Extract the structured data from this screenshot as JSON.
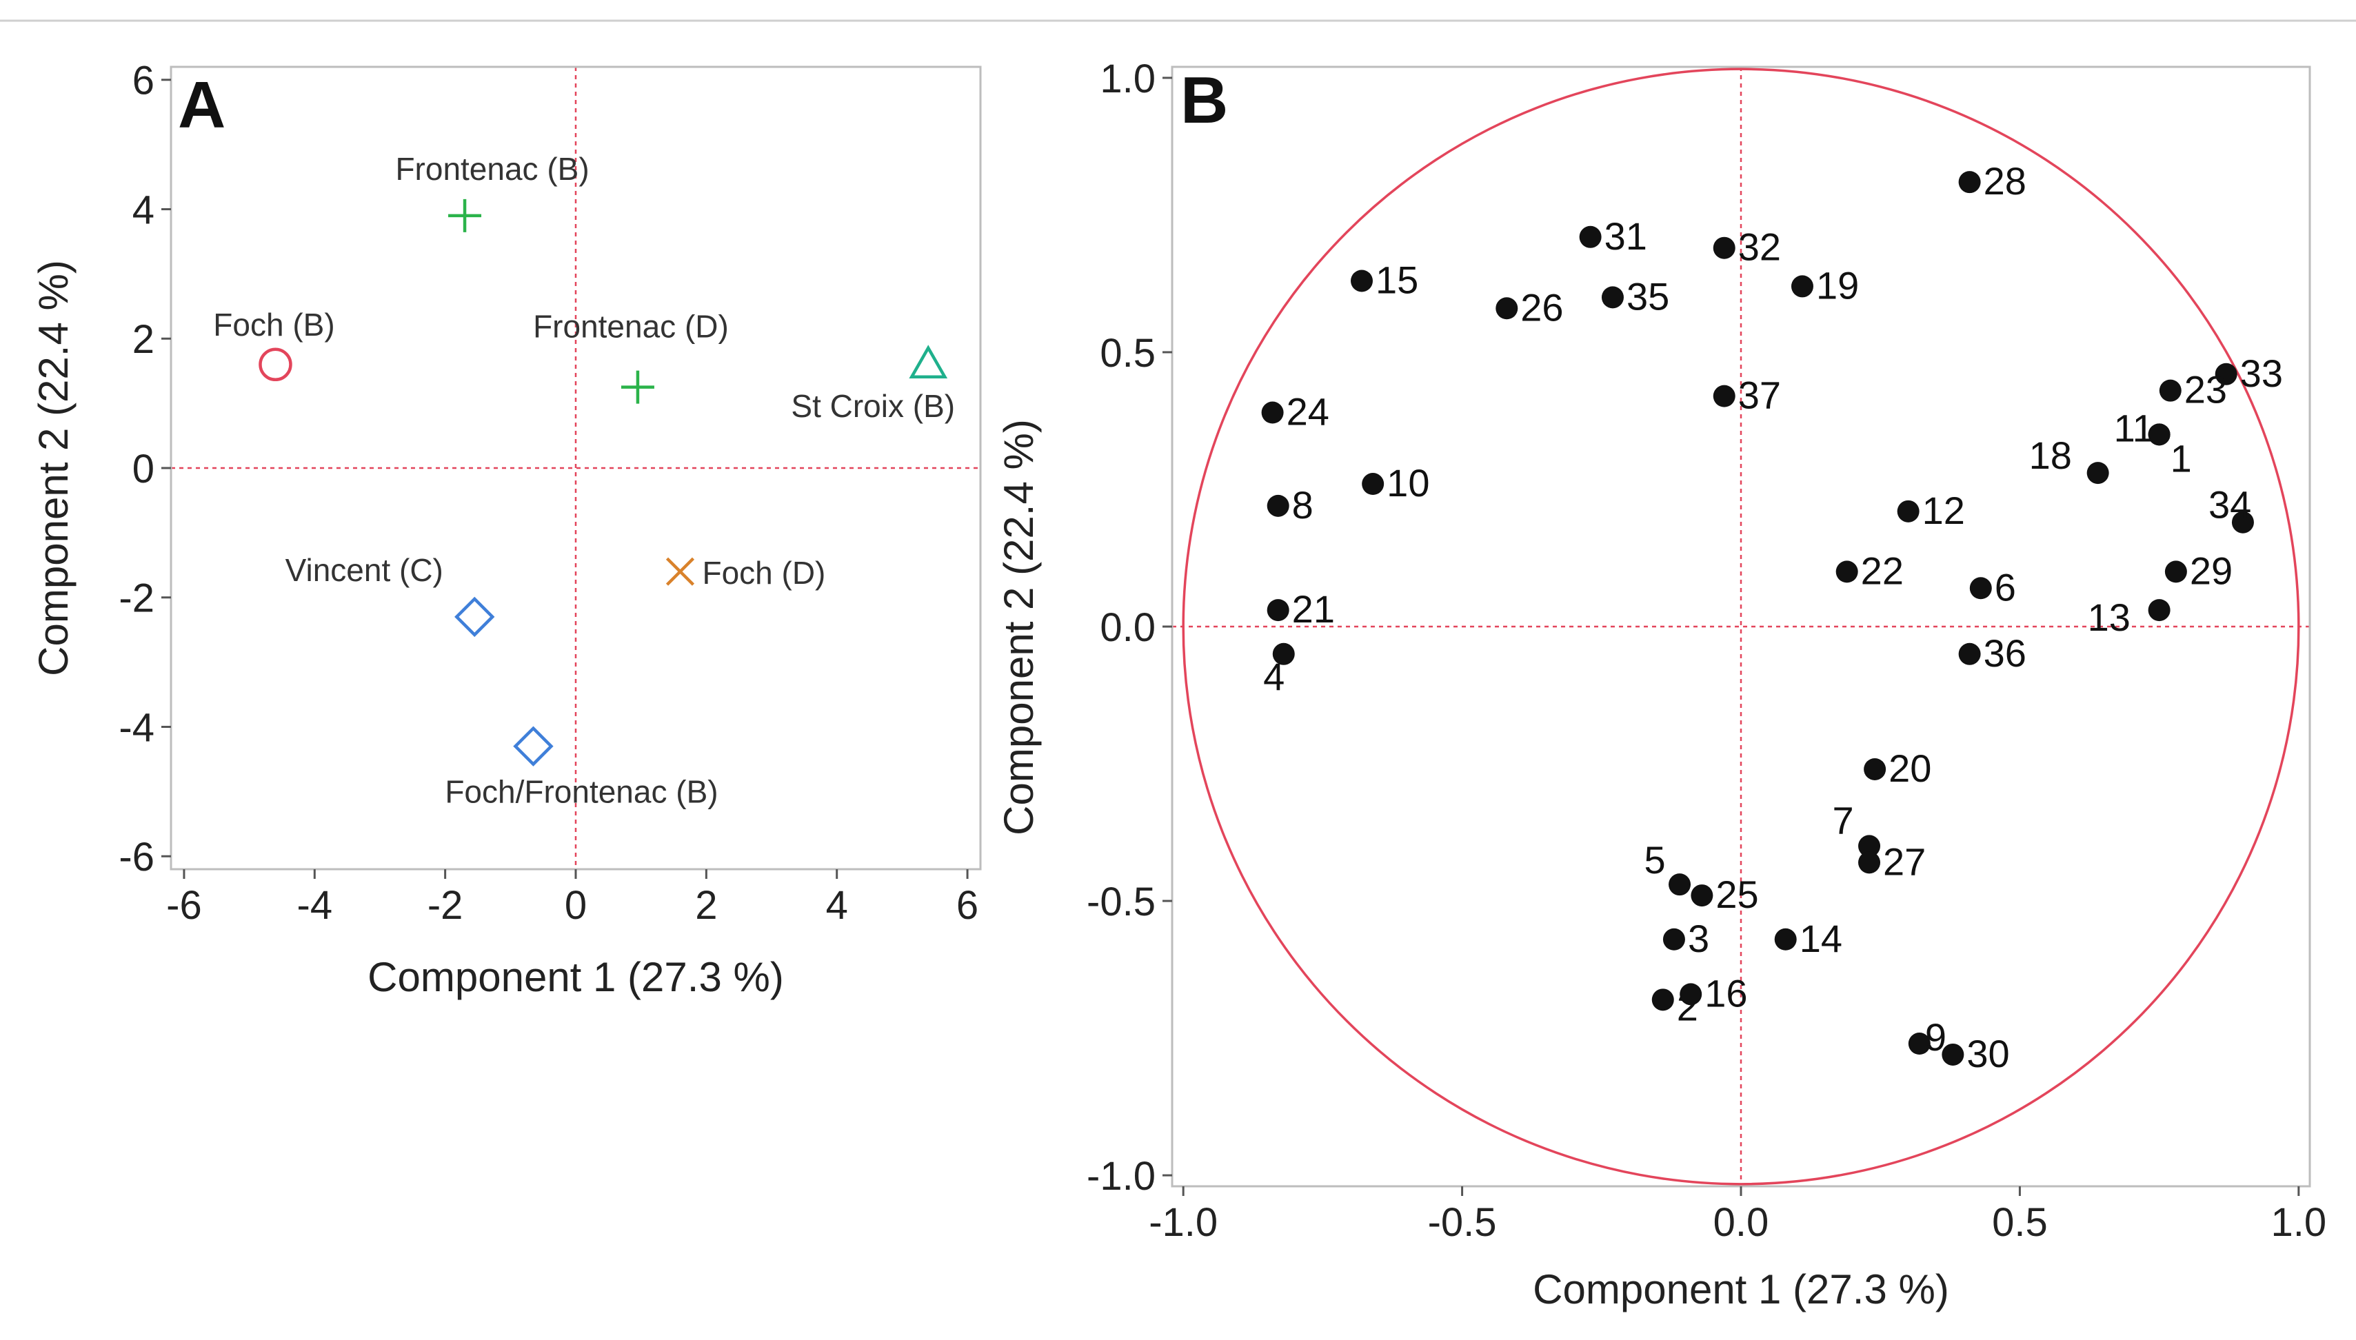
{
  "chart_data": [
    {
      "panel": "A",
      "type": "scatter",
      "xlabel": "Component 1  (27.3 %)",
      "ylabel": "Component 2  (22.4 %)",
      "xlim": [
        -6.2,
        6.2
      ],
      "ylim": [
        -6.2,
        6.2
      ],
      "x_ticks": [
        "-6",
        "-4",
        "-2",
        "0",
        "2",
        "4",
        "6"
      ],
      "y_ticks": [
        "6",
        "4",
        "2",
        "0",
        "-2",
        "-4",
        "-6"
      ],
      "reference_lines": {
        "x": 0,
        "y": 0
      },
      "points": [
        {
          "label": "Frontenac (B)",
          "x": -1.7,
          "y": 3.9,
          "marker": "plus",
          "color": "#2bb34a"
        },
        {
          "label": "Frontenac (D)",
          "x": 0.95,
          "y": 1.25,
          "marker": "plus",
          "color": "#2bb34a"
        },
        {
          "label": "Foch (B)",
          "x": -4.6,
          "y": 1.6,
          "marker": "circle",
          "color": "#e3455b"
        },
        {
          "label": "St Croix (B)",
          "x": 5.4,
          "y": 1.6,
          "marker": "triangle",
          "color": "#1fb08c"
        },
        {
          "label": "Foch (D)",
          "x": 1.6,
          "y": -1.6,
          "marker": "x",
          "color": "#d9822b"
        },
        {
          "label": "Vincent (C)",
          "x": -1.55,
          "y": -2.3,
          "marker": "diamond",
          "color": "#3f7fd9"
        },
        {
          "label": "Foch/Frontenac (B)",
          "x": -0.65,
          "y": -4.3,
          "marker": "diamond",
          "color": "#3f7fd9"
        }
      ]
    },
    {
      "panel": "B",
      "type": "scatter",
      "xlabel": "Component 1  (27.3 %)",
      "ylabel": "Component 2  (22.4 %)",
      "xlim": [
        -1.02,
        1.02
      ],
      "ylim": [
        -1.02,
        1.02
      ],
      "x_ticks": [
        "-1.0",
        "-0.5",
        "0.0",
        "0.5",
        "1.0"
      ],
      "y_ticks": [
        "1.0",
        "0.5",
        "0.0",
        "-0.5",
        "-1.0"
      ],
      "unit_circle": true,
      "reference_lines": {
        "x": 0,
        "y": 0
      },
      "points": [
        {
          "label": "28",
          "x": 0.41,
          "y": 0.81
        },
        {
          "label": "31",
          "x": -0.27,
          "y": 0.71
        },
        {
          "label": "32",
          "x": -0.03,
          "y": 0.69
        },
        {
          "label": "19",
          "x": 0.11,
          "y": 0.62
        },
        {
          "label": "15",
          "x": -0.68,
          "y": 0.63
        },
        {
          "label": "26",
          "x": -0.42,
          "y": 0.58
        },
        {
          "label": "35",
          "x": -0.23,
          "y": 0.6
        },
        {
          "label": "37",
          "x": -0.03,
          "y": 0.42
        },
        {
          "label": "24",
          "x": -0.84,
          "y": 0.39
        },
        {
          "label": "10",
          "x": -0.66,
          "y": 0.26
        },
        {
          "label": "8",
          "x": -0.83,
          "y": 0.22
        },
        {
          "label": "21",
          "x": -0.83,
          "y": 0.03
        },
        {
          "label": "4",
          "x": -0.82,
          "y": -0.05
        },
        {
          "label": "33",
          "x": 0.87,
          "y": 0.46
        },
        {
          "label": "23",
          "x": 0.77,
          "y": 0.43
        },
        {
          "label": "11",
          "x": 0.75,
          "y": 0.35
        },
        {
          "label": "1",
          "x": 0.75,
          "y": 0.35
        },
        {
          "label": "18",
          "x": 0.64,
          "y": 0.28
        },
        {
          "label": "34",
          "x": 0.9,
          "y": 0.19
        },
        {
          "label": "12",
          "x": 0.3,
          "y": 0.21
        },
        {
          "label": "22",
          "x": 0.19,
          "y": 0.1
        },
        {
          "label": "6",
          "x": 0.43,
          "y": 0.07
        },
        {
          "label": "29",
          "x": 0.78,
          "y": 0.1
        },
        {
          "label": "13",
          "x": 0.75,
          "y": 0.03
        },
        {
          "label": "36",
          "x": 0.41,
          "y": -0.05
        },
        {
          "label": "20",
          "x": 0.24,
          "y": -0.26
        },
        {
          "label": "7",
          "x": 0.23,
          "y": -0.4
        },
        {
          "label": "27",
          "x": 0.23,
          "y": -0.43
        },
        {
          "label": "5",
          "x": -0.11,
          "y": -0.47
        },
        {
          "label": "25",
          "x": -0.07,
          "y": -0.49
        },
        {
          "label": "3",
          "x": -0.12,
          "y": -0.57
        },
        {
          "label": "14",
          "x": 0.08,
          "y": -0.57
        },
        {
          "label": "2",
          "x": -0.14,
          "y": -0.68
        },
        {
          "label": "16",
          "x": -0.09,
          "y": -0.67
        },
        {
          "label": "9",
          "x": 0.32,
          "y": -0.76
        },
        {
          "label": "30",
          "x": 0.38,
          "y": -0.78
        }
      ]
    }
  ],
  "colors": {
    "reference_line": "#e3455b",
    "circle": "#e3455b",
    "frame": "#bdbdbd",
    "point": "#111111"
  }
}
